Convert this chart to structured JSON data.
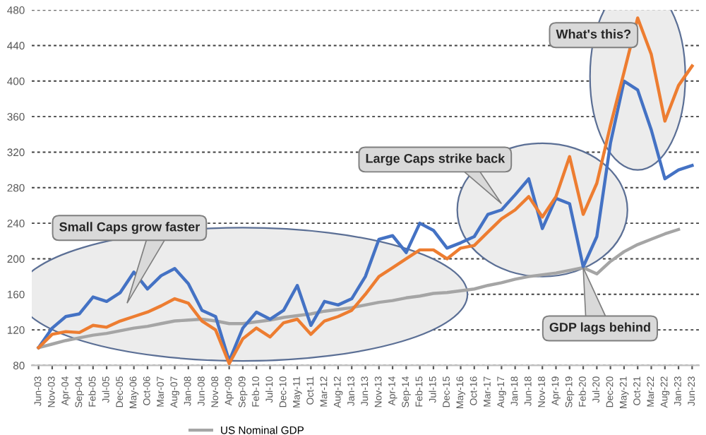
{
  "chart_data": {
    "type": "line",
    "categories": [
      "Jun-03",
      "Nov-03",
      "Apr-04",
      "Sep-04",
      "Feb-05",
      "Jul-05",
      "Dec-05",
      "May-06",
      "Oct-06",
      "Mar-07",
      "Aug-07",
      "Jan-08",
      "Jun-08",
      "Nov-08",
      "Apr-09",
      "Sep-09",
      "Feb-10",
      "Jul-10",
      "Dec-10",
      "May-11",
      "Oct-11",
      "Mar-12",
      "Aug-12",
      "Jan-13",
      "Jun-13",
      "Nov-13",
      "Apr-14",
      "Sep-14",
      "Feb-15",
      "Jul-15",
      "Dec-15",
      "May-16",
      "Oct-16",
      "Mar-17",
      "Aug-17",
      "Jan-18",
      "Jun-18",
      "Nov-18",
      "Apr-19",
      "Sep-19",
      "Feb-20",
      "Jul-20",
      "Dec-20",
      "May-21",
      "Oct-21",
      "Mar-22",
      "Aug-22",
      "Jan-23",
      "Jun-23"
    ],
    "series": [
      {
        "name": "US Nominal GDP",
        "color": "#a5a5a5",
        "values": [
          100,
          104,
          108,
          111,
          114,
          116,
          119,
          122,
          124,
          127,
          130,
          131,
          132,
          130,
          127,
          127,
          129,
          131,
          134,
          136,
          138,
          141,
          143,
          145,
          148,
          151,
          153,
          156,
          158,
          161,
          162,
          164,
          166,
          170,
          173,
          177,
          180,
          182,
          184,
          187,
          190,
          183,
          197,
          208,
          216,
          222,
          228,
          233,
          null
        ]
      },
      {
        "color": "#4472c4",
        "values": [
          100,
          122,
          135,
          138,
          157,
          152,
          162,
          185,
          166,
          181,
          189,
          172,
          142,
          135,
          85,
          122,
          140,
          132,
          142,
          170,
          125,
          152,
          148,
          155,
          180,
          222,
          226,
          207,
          240,
          232,
          212,
          218,
          225,
          250,
          255,
          272,
          290,
          234,
          268,
          262,
          191,
          225,
          330,
          400,
          390,
          345,
          290,
          300,
          305
        ]
      },
      {
        "color": "#ed7d31",
        "values": [
          100,
          115,
          118,
          117,
          125,
          123,
          130,
          135,
          140,
          147,
          155,
          150,
          130,
          120,
          82,
          110,
          122,
          112,
          128,
          132,
          115,
          130,
          135,
          142,
          160,
          180,
          190,
          200,
          210,
          210,
          200,
          212,
          215,
          230,
          245,
          255,
          270,
          247,
          270,
          315,
          250,
          285,
          350,
          410,
          471,
          430,
          355,
          395,
          417
        ]
      }
    ],
    "ylim": [
      80,
      480
    ],
    "yticks": [
      80,
      120,
      160,
      200,
      240,
      280,
      320,
      360,
      400,
      440,
      480
    ],
    "grid": "y",
    "legend": "bottom",
    "marker": "none",
    "line_style": "solid",
    "annotations": [
      "Small Caps grow faster",
      "Large Caps strike back",
      "What's this?",
      "GDP lags behind"
    ]
  }
}
